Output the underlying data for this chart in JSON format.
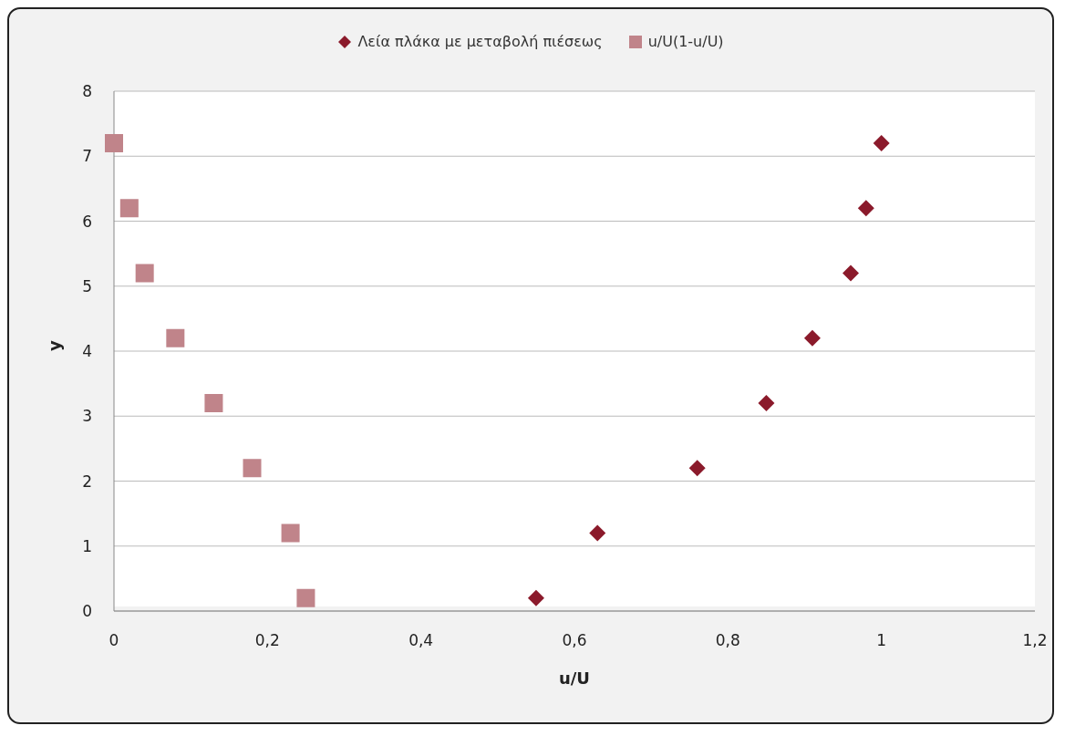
{
  "chart_data": {
    "type": "scatter",
    "xlabel": "u/U",
    "ylabel": "y",
    "series": [
      {
        "name": "Λεία πλάκα με μεταβολή πιέσεως",
        "color": "#8b1a2b",
        "marker": "diamond",
        "x": [
          0.55,
          0.63,
          0.76,
          0.85,
          0.91,
          0.96,
          0.98,
          1.0
        ],
        "values": [
          0.2,
          1.2,
          2.2,
          3.2,
          4.2,
          5.2,
          6.2,
          7.2
        ]
      },
      {
        "name": "u/U(1-u/U)",
        "color": "#c0848a",
        "marker": "square",
        "x": [
          0.25,
          0.23,
          0.18,
          0.13,
          0.08,
          0.04,
          0.02,
          0
        ],
        "values": [
          0.2,
          1.2,
          2.2,
          3.2,
          4.2,
          5.2,
          6.2,
          7.2
        ]
      }
    ],
    "xlim": [
      0,
      1.2
    ],
    "xticks": [
      0,
      {
        "value": 0.2,
        "label": "0,2"
      },
      {
        "value": 0.4,
        "label": "0,4"
      },
      {
        "value": 0.6,
        "label": "0,6"
      },
      {
        "value": 0.8,
        "label": "0,8"
      },
      1,
      {
        "value": 1.2,
        "label": "1,2"
      }
    ],
    "ylim": [
      0,
      8
    ],
    "yticks": [
      0,
      1,
      2,
      3,
      4,
      5,
      6,
      7,
      8
    ],
    "grid": "y",
    "legend": "top"
  }
}
